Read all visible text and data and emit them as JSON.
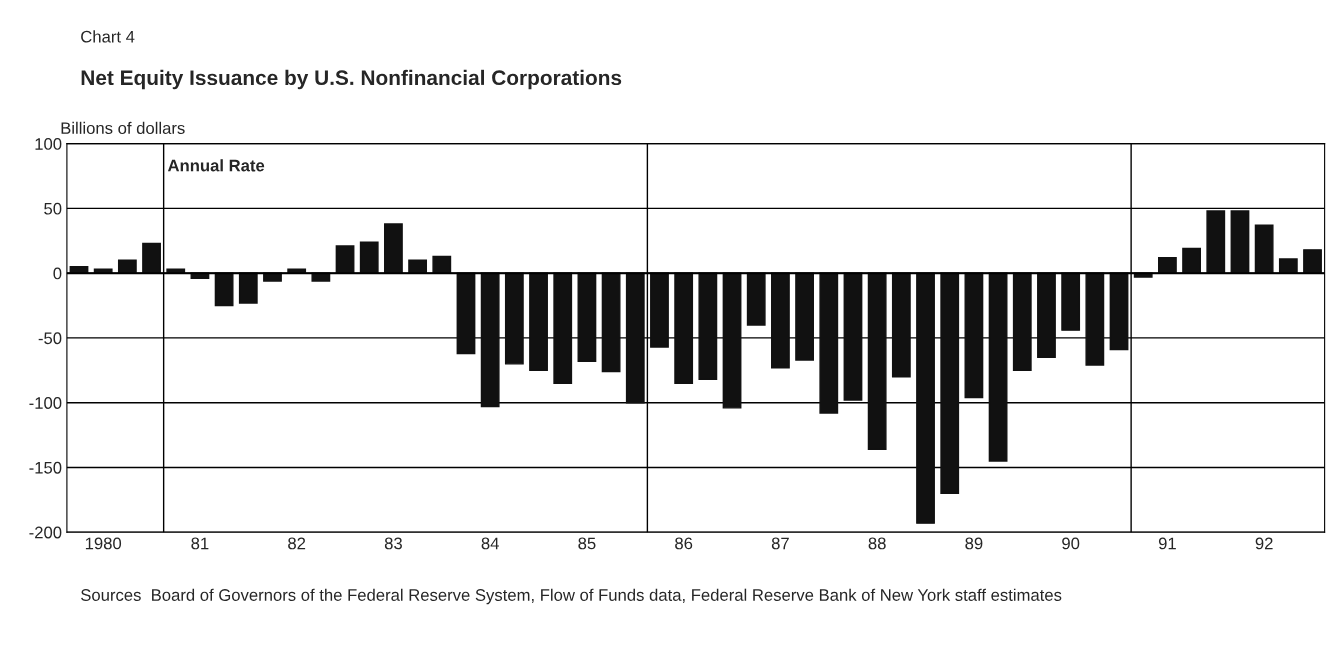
{
  "chart_data": {
    "type": "bar",
    "title": "Net Equity Issuance by U.S. Nonfinancial Corporations",
    "ylabel": "Billions of dollars",
    "annotations": [
      "Chart 4",
      "Annual Rate",
      "Sources  Board of Governors of the Federal Reserve System, Flow of Funds data, Federal Reserve Bank of New York staff estimates"
    ],
    "categories": [
      null,
      "1980",
      null,
      null,
      null,
      "81",
      null,
      null,
      null,
      "82",
      null,
      null,
      null,
      "83",
      null,
      null,
      null,
      "84",
      null,
      null,
      null,
      "85",
      null,
      null,
      null,
      "86",
      null,
      null,
      null,
      "87",
      null,
      null,
      null,
      "88",
      null,
      null,
      null,
      "89",
      null,
      null,
      null,
      "90",
      null,
      null,
      null,
      "91",
      null,
      null,
      null,
      "92",
      null,
      null
    ],
    "values": [
      5,
      3,
      10,
      23,
      3,
      -4,
      -25,
      -23,
      -6,
      3,
      -6,
      21,
      24,
      38,
      10,
      13,
      -62,
      -103,
      -70,
      -75,
      -85,
      -68,
      -76,
      -100,
      -57,
      -85,
      -82,
      -104,
      -40,
      -73,
      -67,
      -108,
      -98,
      -136,
      -80,
      -193,
      -170,
      -96,
      -145,
      -75,
      -65,
      -44,
      -71,
      -59,
      -3,
      12,
      19,
      48,
      48,
      37,
      11,
      18
    ],
    "color": "#111111",
    "ylim": [
      -200,
      100
    ],
    "yticks": [
      -200,
      -150,
      -100,
      -50,
      0,
      50,
      100
    ],
    "grid": "y"
  }
}
